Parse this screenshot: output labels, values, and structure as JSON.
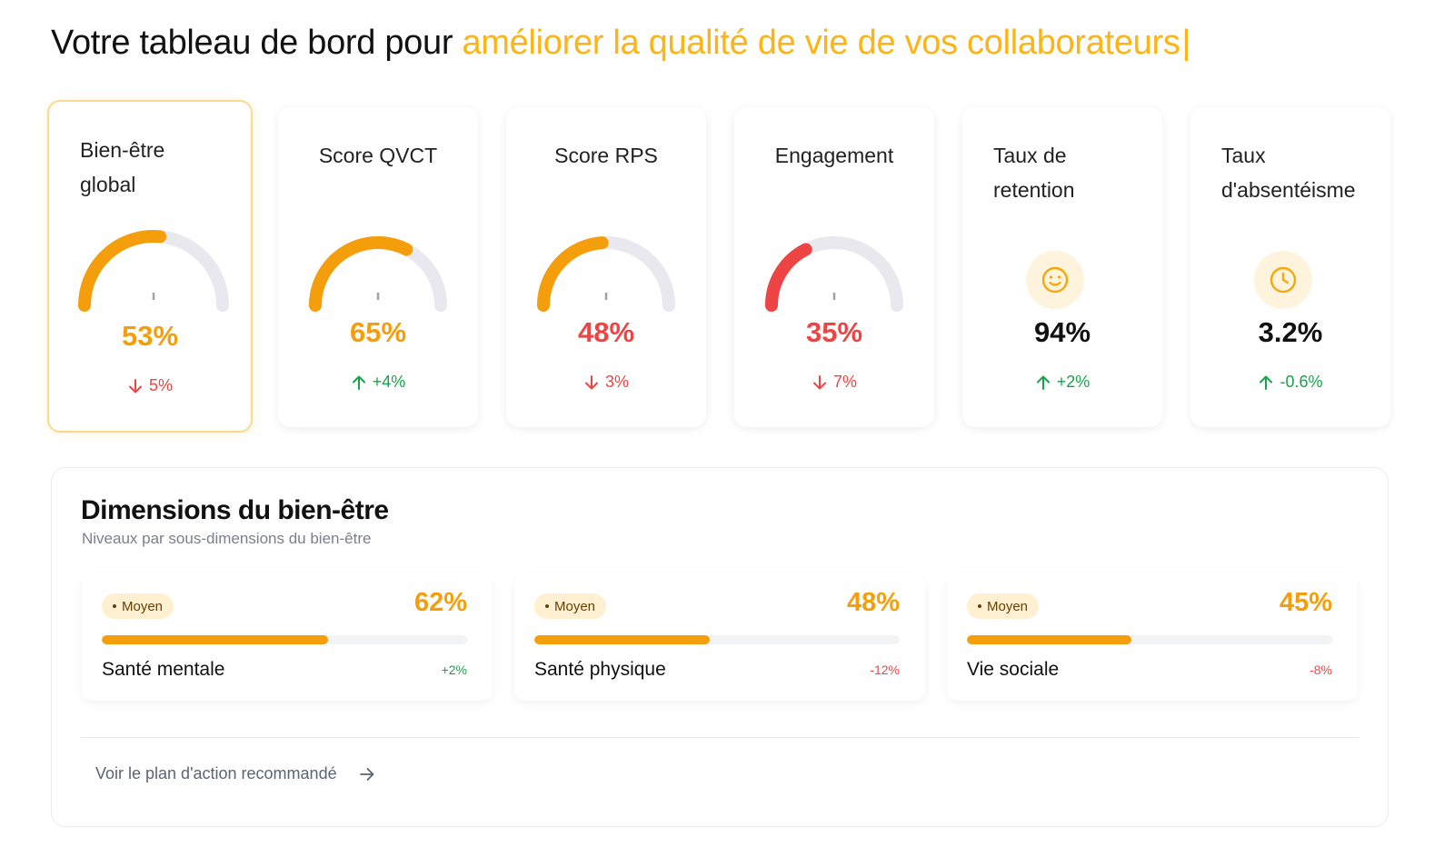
{
  "header": {
    "prefix": "Votre tableau de bord pour ",
    "highlight": "améliorer la qualité de vie de vos collaborateurs",
    "caret": "|"
  },
  "colors": {
    "accent": "#FDB414",
    "orange": "#F59E0B",
    "red": "#EF4444",
    "green": "#16A34A",
    "gauge_track": "#E8E8EE"
  },
  "kpis": [
    {
      "title": "Bien-être global",
      "value": "53%",
      "delta": "5%",
      "direction": "down",
      "gauge": 0.53,
      "value_color": "#F59E0B",
      "gauge_color": "#F59E0B"
    },
    {
      "title": "Score QVCT",
      "value": "65%",
      "delta": "+4%",
      "direction": "up",
      "gauge": 0.65,
      "value_color": "#F59E0B",
      "gauge_color": "#F59E0B"
    },
    {
      "title": "Score RPS",
      "value": "48%",
      "delta": "3%",
      "direction": "down",
      "gauge": 0.48,
      "value_color": "#EF4444",
      "gauge_color": "#F59E0B"
    },
    {
      "title": "Engagement",
      "value": "35%",
      "delta": "7%",
      "direction": "down",
      "gauge": 0.35,
      "value_color": "#EF4444",
      "gauge_color": "#EF4444"
    },
    {
      "title": "Taux de retention",
      "value": "94%",
      "delta": "+2%",
      "direction": "up",
      "icon": "smiley-icon",
      "value_color": "#111111"
    },
    {
      "title": "Taux d'absentéisme",
      "value": "3.2%",
      "delta": "-0.6%",
      "direction": "up",
      "icon": "clock-icon",
      "value_color": "#111111"
    }
  ],
  "dimensions": {
    "title": "Dimensions du bien-être",
    "subtitle": "Niveaux par sous-dimensions du bien-être",
    "items": [
      {
        "badge": "Moyen",
        "percent": "62%",
        "level": 0.62,
        "label": "Santé mentale",
        "trend": "+2%",
        "trend_dir": "up"
      },
      {
        "badge": "Moyen",
        "percent": "48%",
        "level": 0.48,
        "label": "Santé physique",
        "trend": "-12%",
        "trend_dir": "down"
      },
      {
        "badge": "Moyen",
        "percent": "45%",
        "level": 0.45,
        "label": "Vie sociale",
        "trend": "-8%",
        "trend_dir": "down"
      }
    ],
    "action_label": "Voir le plan d'action recommandé"
  }
}
